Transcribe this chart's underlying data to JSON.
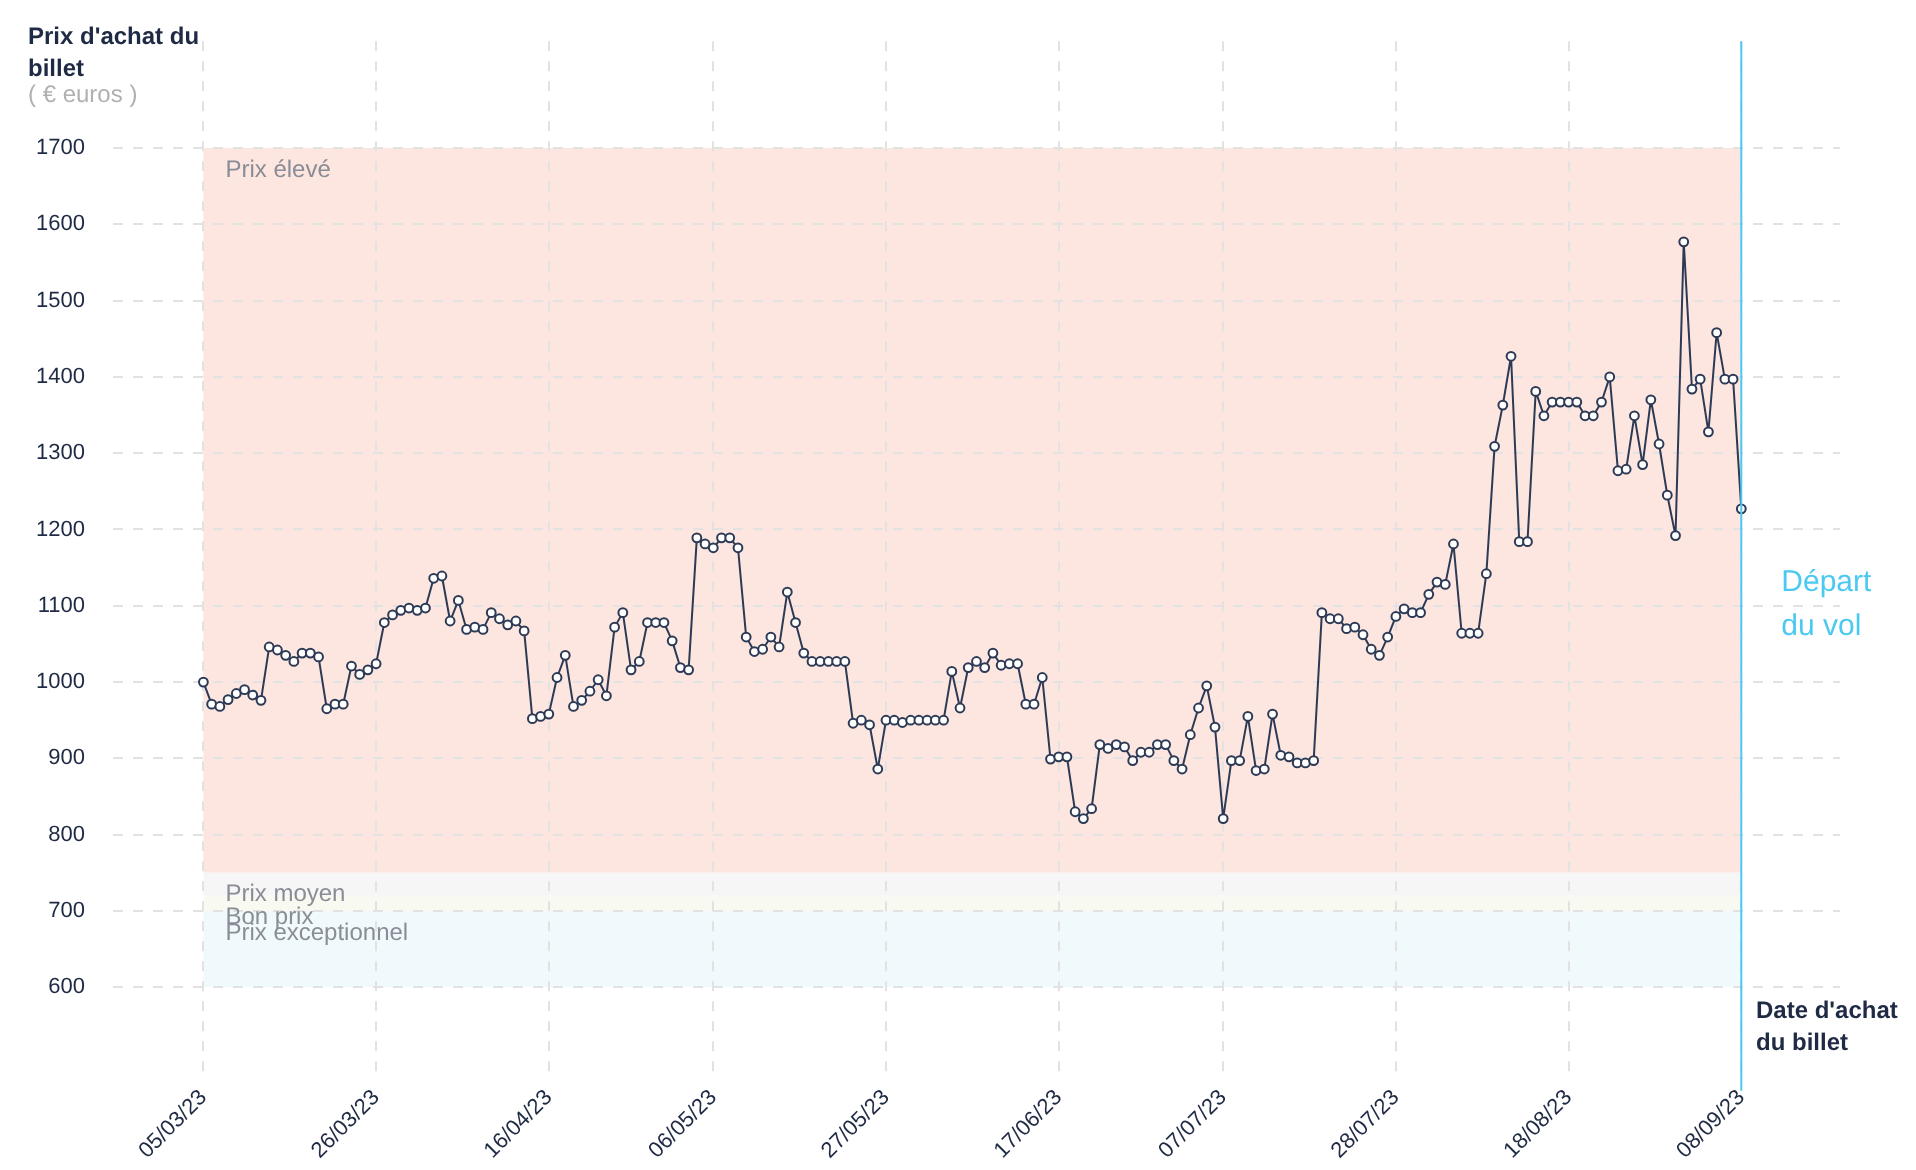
{
  "chart_data": {
    "type": "line",
    "ylabel": "Prix d'achat du billet",
    "xlabel": "Date d'achat du billet",
    "annotations": [
      "( € euros )"
    ],
    "x": [
      "2023-03-05",
      "2023-03-06",
      "2023-03-07",
      "2023-03-08",
      "2023-03-09",
      "2023-03-10",
      "2023-03-11",
      "2023-03-12",
      "2023-03-13",
      "2023-03-14",
      "2023-03-15",
      "2023-03-16",
      "2023-03-17",
      "2023-03-18",
      "2023-03-19",
      "2023-03-20",
      "2023-03-21",
      "2023-03-22",
      "2023-03-23",
      "2023-03-24",
      "2023-03-25",
      "2023-03-26",
      "2023-03-27",
      "2023-03-28",
      "2023-03-29",
      "2023-03-30",
      "2023-03-31",
      "2023-04-01",
      "2023-04-02",
      "2023-04-03",
      "2023-04-04",
      "2023-04-05",
      "2023-04-06",
      "2023-04-07",
      "2023-04-08",
      "2023-04-09",
      "2023-04-10",
      "2023-04-11",
      "2023-04-12",
      "2023-04-13",
      "2023-04-14",
      "2023-04-15",
      "2023-04-16",
      "2023-04-17",
      "2023-04-18",
      "2023-04-19",
      "2023-04-20",
      "2023-04-21",
      "2023-04-22",
      "2023-04-23",
      "2023-04-24",
      "2023-04-25",
      "2023-04-26",
      "2023-04-27",
      "2023-04-28",
      "2023-04-29",
      "2023-04-30",
      "2023-05-01",
      "2023-05-02",
      "2023-05-03",
      "2023-05-04",
      "2023-05-05",
      "2023-05-06",
      "2023-05-07",
      "2023-05-08",
      "2023-05-09",
      "2023-05-10",
      "2023-05-11",
      "2023-05-12",
      "2023-05-13",
      "2023-05-14",
      "2023-05-15",
      "2023-05-16",
      "2023-05-17",
      "2023-05-18",
      "2023-05-19",
      "2023-05-20",
      "2023-05-21",
      "2023-05-22",
      "2023-05-23",
      "2023-05-24",
      "2023-05-25",
      "2023-05-26",
      "2023-05-27",
      "2023-05-28",
      "2023-05-29",
      "2023-05-30",
      "2023-05-31",
      "2023-06-01",
      "2023-06-02",
      "2023-06-03",
      "2023-06-04",
      "2023-06-05",
      "2023-06-06",
      "2023-06-07",
      "2023-06-08",
      "2023-06-09",
      "2023-06-10",
      "2023-06-11",
      "2023-06-12",
      "2023-06-13",
      "2023-06-14",
      "2023-06-15",
      "2023-06-16",
      "2023-06-17",
      "2023-06-18",
      "2023-06-19",
      "2023-06-20",
      "2023-06-21",
      "2023-06-22",
      "2023-06-23",
      "2023-06-24",
      "2023-06-25",
      "2023-06-26",
      "2023-06-27",
      "2023-06-28",
      "2023-06-29",
      "2023-06-30",
      "2023-07-01",
      "2023-07-02",
      "2023-07-03",
      "2023-07-04",
      "2023-07-05",
      "2023-07-06",
      "2023-07-07",
      "2023-07-08",
      "2023-07-09",
      "2023-07-10",
      "2023-07-11",
      "2023-07-12",
      "2023-07-13",
      "2023-07-14",
      "2023-07-15",
      "2023-07-16",
      "2023-07-17",
      "2023-07-18",
      "2023-07-19",
      "2023-07-20",
      "2023-07-21",
      "2023-07-22",
      "2023-07-23",
      "2023-07-24",
      "2023-07-25",
      "2023-07-26",
      "2023-07-27",
      "2023-07-28",
      "2023-07-29",
      "2023-07-30",
      "2023-07-31",
      "2023-08-01",
      "2023-08-02",
      "2023-08-03",
      "2023-08-04",
      "2023-08-05",
      "2023-08-06",
      "2023-08-07",
      "2023-08-08",
      "2023-08-09",
      "2023-08-10",
      "2023-08-11",
      "2023-08-12",
      "2023-08-13",
      "2023-08-14",
      "2023-08-15",
      "2023-08-16",
      "2023-08-17",
      "2023-08-18",
      "2023-08-19",
      "2023-08-20",
      "2023-08-21",
      "2023-08-22",
      "2023-08-23",
      "2023-08-24",
      "2023-08-25",
      "2023-08-26",
      "2023-08-27",
      "2023-08-28",
      "2023-08-29",
      "2023-08-30",
      "2023-08-31",
      "2023-09-01",
      "2023-09-02",
      "2023-09-03",
      "2023-09-04",
      "2023-09-05",
      "2023-09-06",
      "2023-09-07",
      "2023-09-08"
    ],
    "series": [
      {
        "color": "#2d3a55",
        "values": [
          1000,
          971,
          968,
          977,
          985,
          990,
          983,
          976,
          1046,
          1042,
          1035,
          1027,
          1038,
          1038,
          1033,
          965,
          971,
          971,
          1021,
          1010,
          1016,
          1024,
          1078,
          1088,
          1094,
          1097,
          1094,
          1097,
          1136,
          1139,
          1080,
          1107,
          1069,
          1072,
          1069,
          1091,
          1083,
          1075,
          1080,
          1067,
          952,
          955,
          958,
          1006,
          1035,
          968,
          976,
          988,
          1003,
          982,
          1072,
          1091,
          1016,
          1027,
          1078,
          1078,
          1078,
          1054,
          1019,
          1016,
          1189,
          1181,
          1176,
          1189,
          1189,
          1176,
          1059,
          1040,
          1043,
          1059,
          1046,
          1118,
          1078,
          1038,
          1027,
          1027,
          1027,
          1027,
          1027,
          946,
          950,
          944,
          886,
          950,
          950,
          947,
          950,
          950,
          950,
          950,
          950,
          1014,
          966,
          1019,
          1027,
          1019,
          1038,
          1022,
          1024,
          1024,
          971,
          971,
          1006,
          899,
          902,
          902,
          830,
          821,
          834,
          918,
          913,
          918,
          915,
          897,
          908,
          908,
          918,
          918,
          897,
          886,
          931,
          966,
          995,
          941,
          821,
          897,
          897,
          955,
          884,
          886,
          958,
          904,
          902,
          894,
          894,
          897,
          1091,
          1083,
          1083,
          1070,
          1072,
          1062,
          1043,
          1035,
          1059,
          1086,
          1096,
          1091,
          1091,
          1115,
          1131,
          1128,
          1181,
          1064,
          1064,
          1064,
          1142,
          1309,
          1363,
          1427,
          1184,
          1184,
          1381,
          1349,
          1367,
          1367,
          1367,
          1367,
          1349,
          1349,
          1367,
          1400,
          1277,
          1279,
          1349,
          1285,
          1370,
          1312,
          1245,
          1192,
          1577,
          1384,
          1397,
          1328,
          1458,
          1397,
          1397,
          1227
        ]
      }
    ],
    "xlim": [
      "2023-02-22",
      "2023-09-20"
    ],
    "xticks": [
      {
        "value": "2023-03-05",
        "label": "05/03/23"
      },
      {
        "value": "2023-03-26",
        "label": "26/03/23"
      },
      {
        "value": "2023-04-16",
        "label": "16/04/23"
      },
      {
        "value": "2023-05-06",
        "label": "06/05/23"
      },
      {
        "value": "2023-05-27",
        "label": "27/05/23"
      },
      {
        "value": "2023-06-17",
        "label": "17/06/23"
      },
      {
        "value": "2023-07-07",
        "label": "07/07/23"
      },
      {
        "value": "2023-07-28",
        "label": "28/07/23"
      },
      {
        "value": "2023-08-18",
        "label": "18/08/23"
      },
      {
        "value": "2023-09-08",
        "label": "08/09/23"
      }
    ],
    "ylim": [
      480,
      1840
    ],
    "yticks": [
      600,
      700,
      800,
      900,
      1000,
      1100,
      1200,
      1300,
      1400,
      1500,
      1600,
      1700
    ],
    "grid": true,
    "legend": false,
    "marker": "circle",
    "line_style": "solid",
    "bands": [
      {
        "axis": "y",
        "from": 750,
        "to": 1700,
        "label": "Prix élevé",
        "color": "#fde6e0"
      },
      {
        "axis": "y",
        "from": 720,
        "to": 750,
        "label": "Prix moyen",
        "color": "#f6f6f6"
      },
      {
        "axis": "y",
        "from": 700,
        "to": 720,
        "label": "Bon prix",
        "color": "#f8f9f1"
      },
      {
        "axis": "y",
        "from": 600,
        "to": 700,
        "label": "Prix exceptionnel",
        "color": "#f0fafd"
      }
    ],
    "ref_lines": [
      {
        "axis": "x",
        "value": "2023-09-08",
        "label": "Départ du vol",
        "color": "#4cc9f0"
      }
    ]
  }
}
